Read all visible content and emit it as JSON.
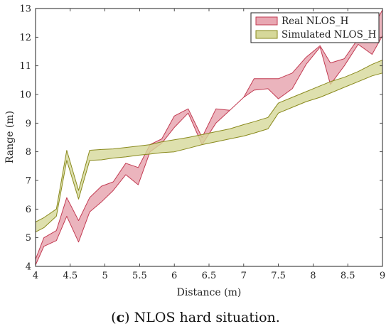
{
  "caption": {
    "prefix_open": "(",
    "letter": "c",
    "prefix_close": ")",
    "text": " NLOS hard situation."
  },
  "chart_data": {
    "type": "area",
    "xlabel": "Distance (m)",
    "ylabel": "Range (m)",
    "xlim": [
      4,
      9
    ],
    "ylim": [
      4,
      13
    ],
    "xticks": [
      "4",
      "4.5",
      "5",
      "5.5",
      "6",
      "6.5",
      "7",
      "7.5",
      "8",
      "8.5",
      "9"
    ],
    "yticks": [
      "4",
      "5",
      "6",
      "7",
      "8",
      "9",
      "10",
      "11",
      "12",
      "13"
    ],
    "legend_position": "top-right",
    "series": [
      {
        "name": "Real NLOS_H",
        "fill": "#e8a7b2",
        "stroke": "#c23b52",
        "x": [
          4.0,
          4.12,
          4.3,
          4.45,
          4.62,
          4.78,
          4.95,
          5.12,
          5.3,
          5.48,
          5.65,
          5.82,
          6.0,
          6.2,
          6.4,
          6.6,
          6.8,
          7.0,
          7.15,
          7.35,
          7.5,
          7.7,
          7.9,
          8.1,
          8.25,
          8.45,
          8.65,
          8.85,
          9.0
        ],
        "upper": [
          4.25,
          5.0,
          5.25,
          6.4,
          5.6,
          6.4,
          6.8,
          6.95,
          7.6,
          7.45,
          8.25,
          8.45,
          9.25,
          9.5,
          8.5,
          9.5,
          9.45,
          9.9,
          10.55,
          10.55,
          10.55,
          10.75,
          11.3,
          11.7,
          11.1,
          11.25,
          11.95,
          12.3,
          12.95
        ],
        "lower": [
          4.05,
          4.7,
          4.9,
          5.75,
          4.85,
          5.9,
          6.25,
          6.65,
          7.2,
          6.85,
          8.0,
          8.3,
          8.85,
          9.35,
          8.25,
          9.0,
          9.45,
          9.9,
          10.15,
          10.2,
          9.85,
          10.2,
          11.05,
          11.65,
          10.35,
          11.0,
          11.75,
          11.4,
          12.05
        ]
      },
      {
        "name": "Simulated NLOS_H",
        "fill": "#d6d89a",
        "stroke": "#8a8a1e",
        "x": [
          4.0,
          4.12,
          4.3,
          4.45,
          4.62,
          4.78,
          4.95,
          5.12,
          5.3,
          5.48,
          5.65,
          5.82,
          6.0,
          6.2,
          6.4,
          6.6,
          6.8,
          7.0,
          7.15,
          7.35,
          7.5,
          7.7,
          7.9,
          8.1,
          8.25,
          8.45,
          8.65,
          8.85,
          9.0
        ],
        "upper": [
          5.55,
          5.7,
          6.0,
          8.05,
          6.65,
          8.05,
          8.08,
          8.1,
          8.15,
          8.2,
          8.25,
          8.35,
          8.42,
          8.5,
          8.6,
          8.7,
          8.8,
          8.95,
          9.05,
          9.2,
          9.7,
          9.9,
          10.1,
          10.3,
          10.45,
          10.6,
          10.8,
          11.05,
          11.2
        ],
        "lower": [
          5.2,
          5.35,
          5.75,
          7.7,
          6.35,
          7.7,
          7.72,
          7.78,
          7.82,
          7.88,
          7.92,
          7.97,
          8.0,
          8.12,
          8.25,
          8.35,
          8.45,
          8.55,
          8.65,
          8.8,
          9.35,
          9.55,
          9.75,
          9.9,
          10.05,
          10.25,
          10.45,
          10.65,
          10.75
        ]
      }
    ]
  }
}
